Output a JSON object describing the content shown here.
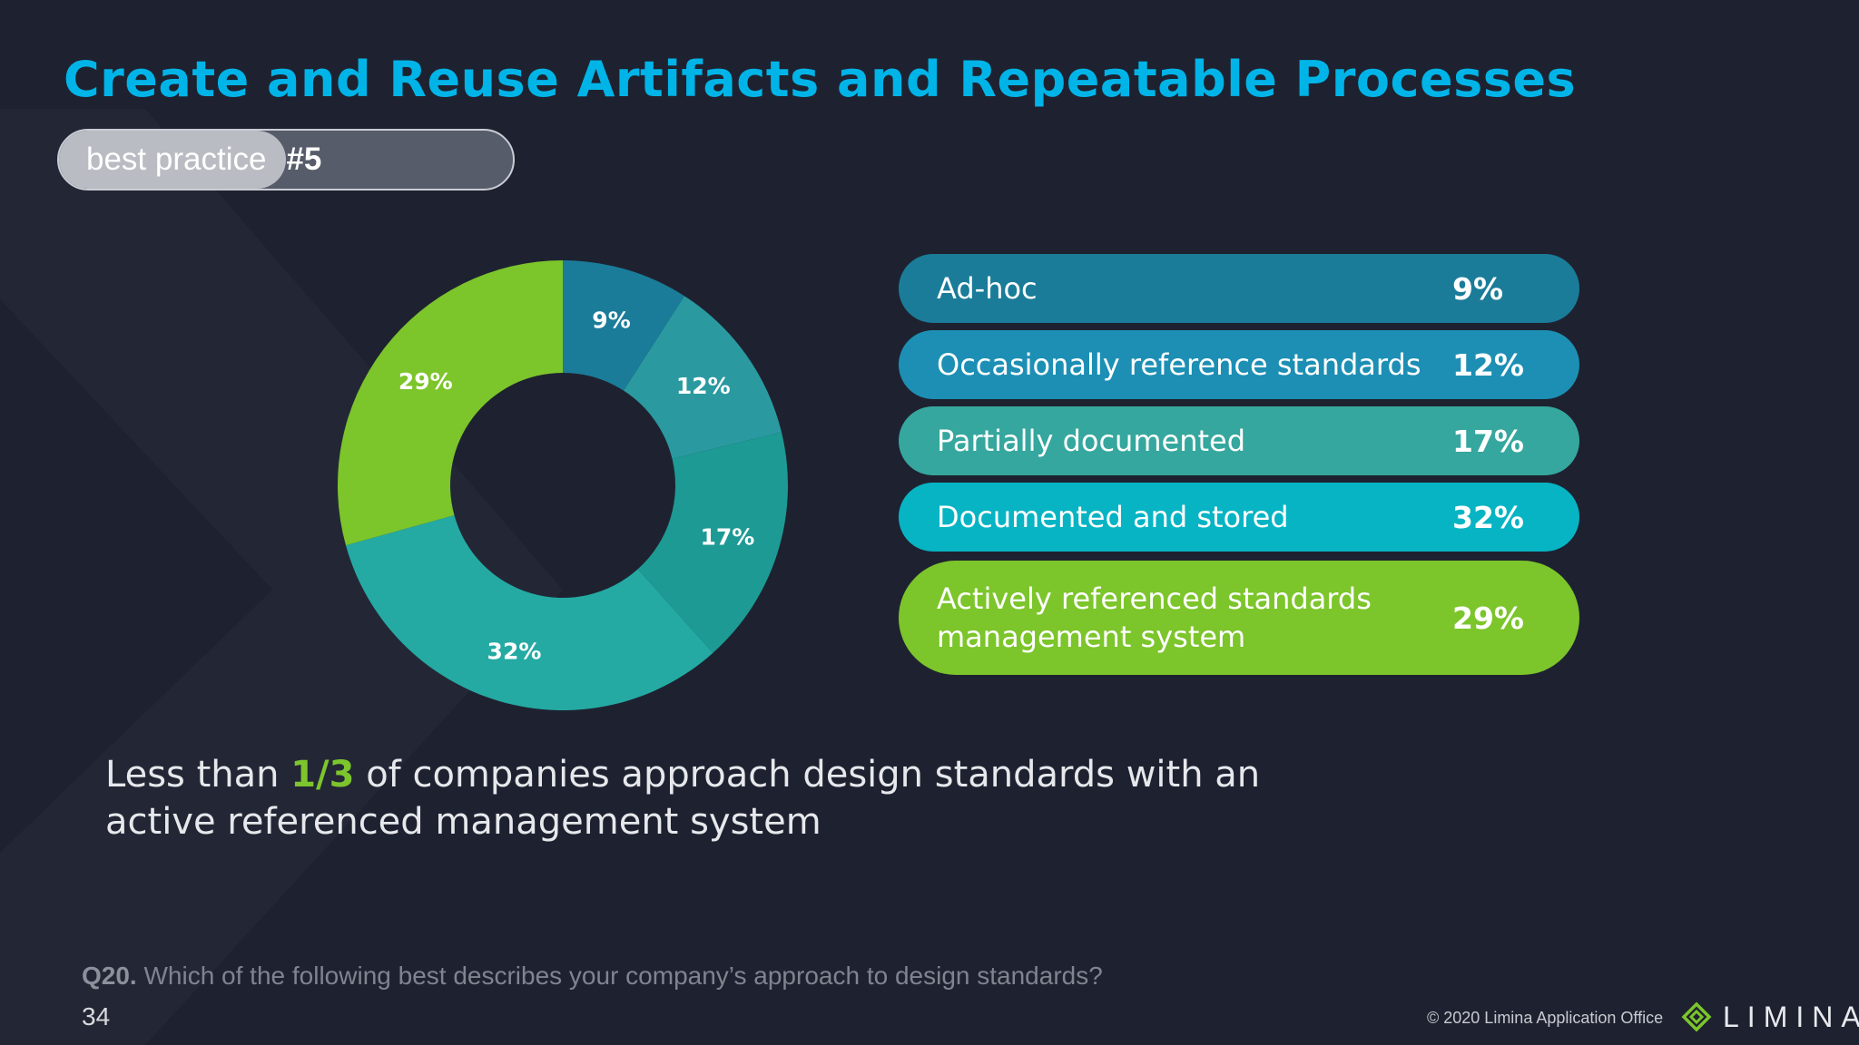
{
  "title": "Create and Reuse Artifacts and Repeatable Processes",
  "badge": {
    "label": "best practice",
    "number": "#5",
    "progress": 0.5
  },
  "chart_data": {
    "type": "pie",
    "donut": true,
    "categories": [
      "Ad-hoc",
      "Occasionally reference standards",
      "Partially documented",
      "Documented and stored",
      "Actively referenced standards\nmanagement system"
    ],
    "values": [
      9,
      12,
      17,
      32,
      29
    ],
    "labels": [
      "9%",
      "12%",
      "17%",
      "32%",
      "29%"
    ],
    "colors": [
      "#1a7c99",
      "#2a9aa0",
      "#1d9a94",
      "#24aaa3",
      "#7cc52b"
    ],
    "legend_colors": [
      "#1a7c99",
      "#1d8fb4",
      "#35a79e",
      "#07b4c4",
      "#7cc52b"
    ],
    "legend": "right"
  },
  "summary": {
    "before": "Less than ",
    "highlight": "1/3",
    "after": " of companies approach design standards with an active referenced management system"
  },
  "question": {
    "number": "Q20.",
    "text": " Which of the following best describes your company’s approach to design standards?"
  },
  "page_number": "34",
  "copyright": "© 2020  Limina Application Office",
  "logo": {
    "text": "LIMINA",
    "icon": "diamond-logo-icon",
    "color": "#7cc52b"
  }
}
